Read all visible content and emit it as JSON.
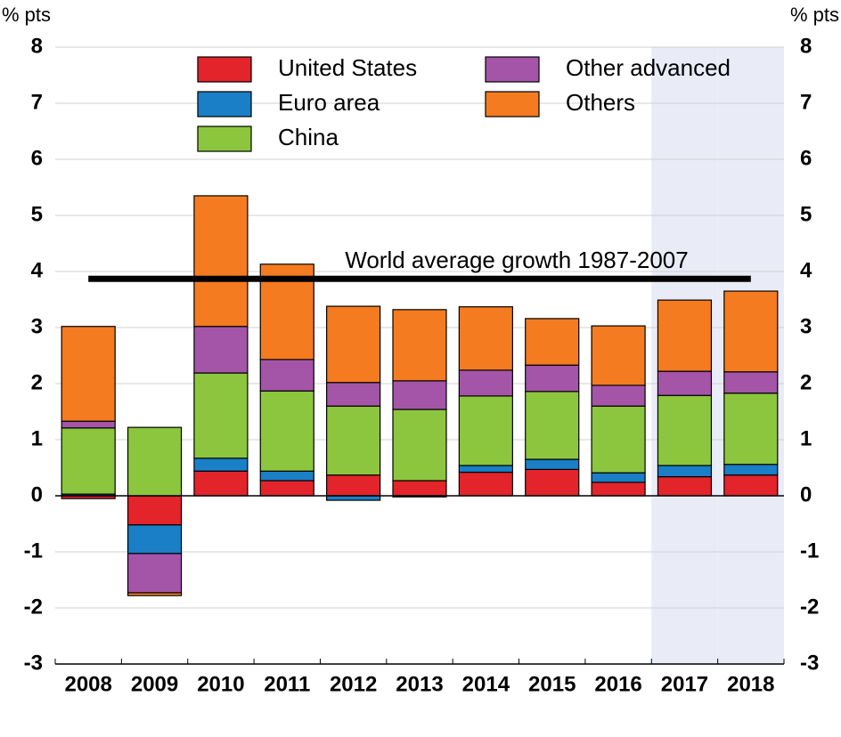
{
  "chart_data": {
    "type": "stacked_bar",
    "y_label": "% pts",
    "y2_label": "% pts",
    "categories": [
      "2008",
      "2009",
      "2010",
      "2011",
      "2012",
      "2013",
      "2014",
      "2015",
      "2016",
      "2017",
      "2018"
    ],
    "shaded": [
      false,
      false,
      false,
      false,
      false,
      false,
      false,
      false,
      false,
      true,
      true
    ],
    "series": [
      {
        "name": "United States",
        "color": "#e3242b",
        "values": [
          -0.05,
          -0.52,
          0.44,
          0.27,
          0.37,
          0.27,
          0.42,
          0.47,
          0.24,
          0.34,
          0.37
        ]
      },
      {
        "name": "Euro area",
        "color": "#1a7fc6",
        "values": [
          0.03,
          -0.51,
          0.23,
          0.17,
          -0.08,
          -0.02,
          0.12,
          0.18,
          0.17,
          0.2,
          0.19
        ]
      },
      {
        "name": "China",
        "color": "#8cc63e",
        "values": [
          1.18,
          1.22,
          1.52,
          1.43,
          1.23,
          1.27,
          1.24,
          1.21,
          1.19,
          1.25,
          1.27
        ]
      },
      {
        "name": "Other advanced",
        "color": "#a455a8",
        "values": [
          0.12,
          -0.7,
          0.83,
          0.56,
          0.42,
          0.51,
          0.46,
          0.47,
          0.37,
          0.43,
          0.38
        ]
      },
      {
        "name": "Others",
        "color": "#f47b20",
        "values": [
          1.69,
          -0.05,
          2.33,
          1.7,
          1.36,
          1.27,
          1.13,
          0.83,
          1.06,
          1.27,
          1.44
        ]
      }
    ],
    "reference_line": {
      "value": 3.87,
      "label": "World average growth 1987-2007"
    },
    "ylim": [
      -3,
      8
    ],
    "yticks": [
      -3,
      -2,
      -1,
      0,
      1,
      2,
      3,
      4,
      5,
      6,
      7,
      8
    ],
    "y2lim": [
      -3,
      8
    ],
    "y2ticks": [
      -3,
      -2,
      -1,
      0,
      1,
      2,
      3,
      4,
      5,
      6,
      7,
      8
    ],
    "grid": true
  }
}
